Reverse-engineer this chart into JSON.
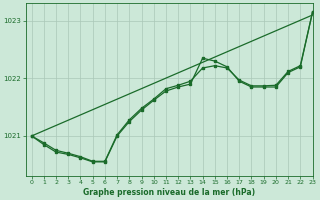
{
  "title": "Graphe pression niveau de la mer (hPa)",
  "background_color": "#cce8d8",
  "plot_bg_color": "#cce8d8",
  "grid_color": "#aac8b8",
  "line_color": "#1a6b2a",
  "xlim": [
    -0.5,
    23
  ],
  "ylim": [
    1020.3,
    1023.3
  ],
  "yticks": [
    1021,
    1022,
    1023
  ],
  "xticks": [
    0,
    1,
    2,
    3,
    4,
    5,
    6,
    7,
    8,
    9,
    10,
    11,
    12,
    13,
    14,
    15,
    16,
    17,
    18,
    19,
    20,
    21,
    22,
    23
  ],
  "series1_x": [
    0,
    1,
    2,
    3,
    4,
    5,
    6,
    7,
    8,
    9,
    10,
    11,
    12,
    13,
    14,
    15,
    16,
    17,
    18,
    19,
    20,
    21,
    22,
    23
  ],
  "series1_y": [
    1021.0,
    1020.85,
    1020.72,
    1020.68,
    1020.62,
    1020.55,
    1020.55,
    1021.0,
    1021.25,
    1021.45,
    1021.62,
    1021.78,
    1021.85,
    1021.9,
    1022.35,
    1022.3,
    1022.2,
    1021.95,
    1021.85,
    1021.85,
    1021.85,
    1022.1,
    1022.2,
    1023.15
  ],
  "series2_x": [
    0,
    1,
    2,
    3,
    4,
    5,
    6,
    7,
    8,
    9,
    10,
    11,
    12,
    13,
    14,
    15,
    16,
    17,
    18,
    19,
    20,
    21,
    22,
    23
  ],
  "series2_y": [
    1021.0,
    1020.88,
    1020.75,
    1020.7,
    1020.64,
    1020.56,
    1020.56,
    1021.02,
    1021.28,
    1021.48,
    1021.64,
    1021.82,
    1021.88,
    1021.95,
    1022.18,
    1022.22,
    1022.18,
    1021.97,
    1021.87,
    1021.87,
    1021.88,
    1022.12,
    1022.22,
    1023.15
  ],
  "series3_x": [
    0,
    23
  ],
  "series3_y": [
    1021.0,
    1023.1
  ]
}
